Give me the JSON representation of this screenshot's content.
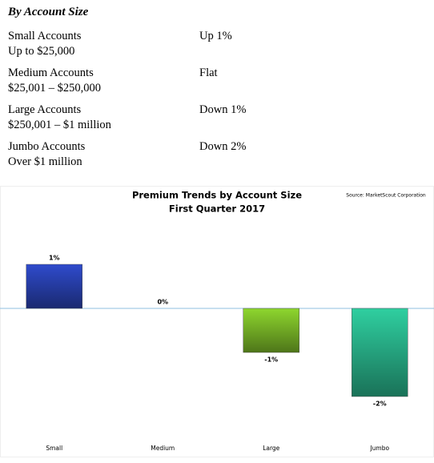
{
  "header": {
    "title": "By Account Size"
  },
  "table": {
    "rows": [
      [
        "Small Accounts",
        "Up to $25,000",
        "Up 1%"
      ],
      [
        "Medium Accounts",
        "$25,001 – $250,000",
        "Flat"
      ],
      [
        "Large Accounts",
        "$250,001 – $1 million",
        "Down 1%"
      ],
      [
        "Jumbo Accounts",
        "Over $1 million",
        "Down 2%"
      ]
    ]
  },
  "chart_data": {
    "type": "bar",
    "title": "Premium Trends by Account Size",
    "subtitle": "First Quarter 2017",
    "source": "Source: MarketScout Corporation",
    "categories": [
      "Small",
      "Medium",
      "Large",
      "Jumbo"
    ],
    "values": [
      1,
      0,
      -1,
      -2
    ],
    "value_labels": [
      "1%",
      "0%",
      "-1%",
      "-2%"
    ],
    "colors": [
      "#2f4bcc",
      "#c8d0d8",
      "#8ed62e",
      "#2fcfa0"
    ],
    "ylim": [
      -2.5,
      2.5
    ]
  }
}
